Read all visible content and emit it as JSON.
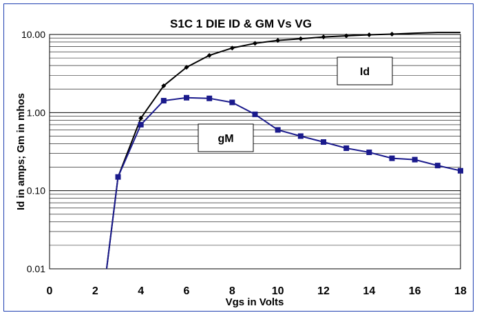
{
  "chart_data": {
    "type": "line",
    "title": "S1C 1 DIE  ID & GM Vs VG",
    "xlabel": "Vgs  in Volts",
    "ylabel": "Id in amps;  Gm in mhos",
    "xlim": [
      0,
      18
    ],
    "ylim": [
      0.01,
      10
    ],
    "yscale": "log",
    "grid": true,
    "x_ticks": [
      "0",
      "2",
      "4",
      "6",
      "8",
      "10",
      "12",
      "14",
      "16",
      "18"
    ],
    "y_ticks": [
      "0.01",
      "0.10",
      "1.00",
      "10.00"
    ],
    "series": [
      {
        "name": "Id",
        "color": "#000000",
        "marker": "diamond",
        "x": [
          2.5,
          3,
          4,
          5,
          6,
          7,
          8,
          9,
          10,
          11,
          12,
          13,
          14,
          15,
          16,
          17,
          18
        ],
        "y": [
          0.01,
          0.15,
          0.85,
          2.2,
          3.8,
          5.4,
          6.7,
          7.7,
          8.4,
          8.8,
          9.3,
          9.6,
          9.9,
          10.1,
          10.4,
          10.6,
          10.6
        ]
      },
      {
        "name": "gM",
        "color": "#1a1a8c",
        "marker": "square",
        "x": [
          2.5,
          3,
          4,
          5,
          6,
          7,
          8,
          9,
          10,
          11,
          12,
          13,
          14,
          15,
          16,
          17,
          18
        ],
        "y": [
          0.01,
          0.15,
          0.7,
          1.42,
          1.55,
          1.52,
          1.35,
          0.95,
          0.6,
          0.5,
          0.42,
          0.35,
          0.31,
          0.26,
          0.25,
          0.21,
          0.18
        ]
      }
    ],
    "marker_points": {
      "Id": [
        3,
        4,
        5,
        6,
        7,
        8,
        9,
        10,
        11,
        12,
        13,
        14,
        15
      ],
      "gM": [
        3,
        4,
        5,
        6,
        7,
        8,
        9,
        10,
        11,
        12,
        13,
        14,
        15,
        16,
        17,
        18
      ]
    },
    "annotations": [
      {
        "text": "Id",
        "series": "Id"
      },
      {
        "text": "gM",
        "series": "gM"
      }
    ]
  }
}
